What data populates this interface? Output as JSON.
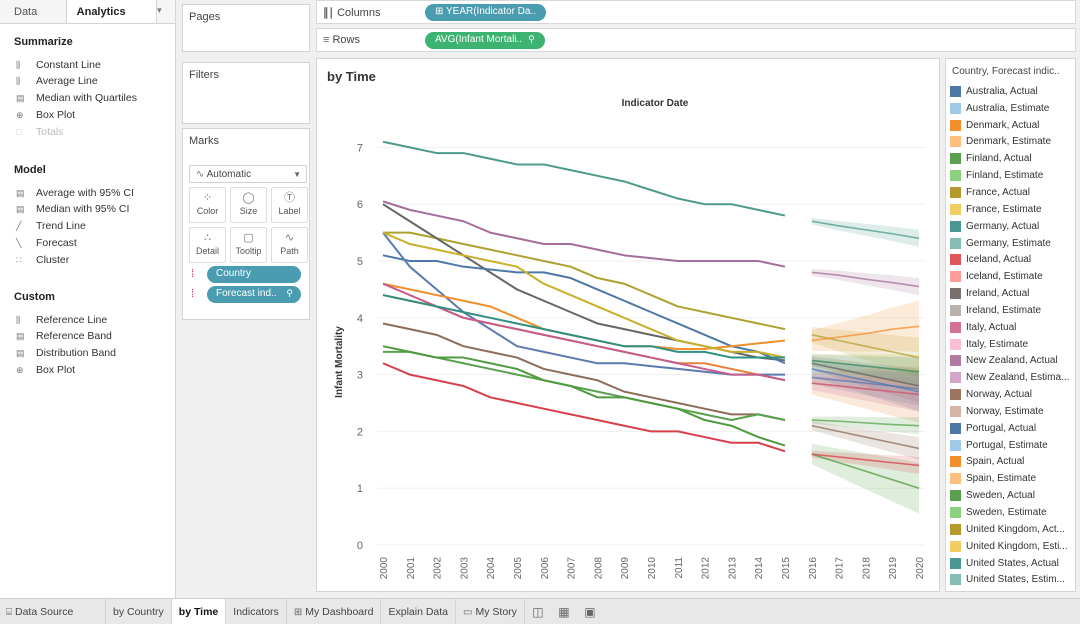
{
  "left_tabs": {
    "data": "Data",
    "analytics": "Analytics"
  },
  "summarize": {
    "heading": "Summarize",
    "items": [
      {
        "label": "Constant Line",
        "icon": "constant-line-icon"
      },
      {
        "label": "Average Line",
        "icon": "average-line-icon"
      },
      {
        "label": "Median with Quartiles",
        "icon": "median-quartiles-icon"
      },
      {
        "label": "Box Plot",
        "icon": "box-plot-icon"
      },
      {
        "label": "Totals",
        "icon": "totals-icon"
      }
    ]
  },
  "model": {
    "heading": "Model",
    "items": [
      {
        "label": "Average with 95% CI",
        "icon": "average-ci-icon"
      },
      {
        "label": "Median with 95% CI",
        "icon": "median-ci-icon"
      },
      {
        "label": "Trend Line",
        "icon": "trend-line-icon"
      },
      {
        "label": "Forecast",
        "icon": "forecast-icon"
      },
      {
        "label": "Cluster",
        "icon": "cluster-icon"
      }
    ]
  },
  "custom": {
    "heading": "Custom",
    "items": [
      {
        "label": "Reference Line",
        "icon": "reference-line-icon"
      },
      {
        "label": "Reference Band",
        "icon": "reference-band-icon"
      },
      {
        "label": "Distribution Band",
        "icon": "distribution-band-icon"
      },
      {
        "label": "Box Plot",
        "icon": "box-plot-icon"
      }
    ]
  },
  "cards": {
    "pages": "Pages",
    "filters": "Filters",
    "marks": "Marks",
    "marks_type": "Automatic",
    "mark_buttons": [
      "Color",
      "Size",
      "Label",
      "Detail",
      "Tooltip",
      "Path"
    ],
    "pills": [
      "Country",
      "Forecast ind.."
    ]
  },
  "shelves": {
    "columns_label": "Columns",
    "columns_pill": "YEAR(Indicator Da..",
    "rows_label": "Rows",
    "rows_pill": "AVG(Infant Mortali..",
    "columns_color": "#4a9cb0",
    "rows_color": "#3cb371"
  },
  "view": {
    "title": "by Time"
  },
  "chart_data": {
    "type": "line",
    "title": "Indicator Date",
    "xlabel": "",
    "ylabel": "Infant Mortality",
    "ylim": [
      0,
      7.5
    ],
    "yticks": [
      0,
      1,
      2,
      3,
      4,
      5,
      6,
      7
    ],
    "x": [
      "2000",
      "2001",
      "2002",
      "2003",
      "2004",
      "2005",
      "2006",
      "2007",
      "2008",
      "2009",
      "2010",
      "2011",
      "2012",
      "2013",
      "2014",
      "2015",
      "2016",
      "2017",
      "2018",
      "2019",
      "2020"
    ],
    "actual_years": [
      "2000",
      "2001",
      "2002",
      "2003",
      "2004",
      "2005",
      "2006",
      "2007",
      "2008",
      "2009",
      "2010",
      "2011",
      "2012",
      "2013",
      "2014",
      "2015"
    ],
    "forecast_years": [
      "2016",
      "2017",
      "2018",
      "2019",
      "2020"
    ],
    "series": [
      {
        "name": "Germany",
        "color": "#4e9a8a",
        "actual": [
          7.1,
          7.0,
          6.9,
          6.9,
          6.8,
          6.7,
          6.7,
          6.6,
          6.5,
          6.4,
          6.25,
          6.1,
          6.0,
          6.0,
          5.9,
          5.8
        ],
        "estimate": [
          5.7,
          5.62,
          5.55,
          5.48,
          5.4
        ],
        "band": 0.15
      },
      {
        "name": "New Zealand",
        "color": "#a36f9a",
        "actual": [
          6.05,
          5.9,
          5.8,
          5.7,
          5.5,
          5.4,
          5.3,
          5.3,
          5.2,
          5.1,
          5.05,
          5.0,
          5.0,
          5.0,
          5.0,
          4.9
        ],
        "estimate": [
          4.8,
          4.75,
          4.68,
          4.62,
          4.55
        ],
        "band": 0.15
      },
      {
        "name": "France",
        "color": "#b0a030",
        "actual": [
          5.5,
          5.5,
          5.4,
          5.3,
          5.2,
          5.1,
          5.0,
          4.9,
          4.7,
          4.6,
          4.4,
          4.2,
          4.1,
          4.0,
          3.9,
          3.8
        ],
        "estimate": [
          3.7,
          3.6,
          3.5,
          3.4,
          3.3
        ],
        "band": 0.35
      },
      {
        "name": "Ireland",
        "color": "#666666",
        "actual": [
          6.0,
          5.7,
          5.4,
          5.1,
          4.8,
          4.5,
          4.3,
          4.1,
          3.9,
          3.8,
          3.7,
          3.6,
          3.5,
          3.4,
          3.3,
          3.25
        ],
        "estimate": [
          3.2,
          3.1,
          3.0,
          2.9,
          2.8
        ],
        "band": 0.3
      },
      {
        "name": "Australia",
        "color": "#4e79a7",
        "actual": [
          5.1,
          5.0,
          5.0,
          4.9,
          4.85,
          4.8,
          4.8,
          4.7,
          4.5,
          4.3,
          4.1,
          3.9,
          3.7,
          3.5,
          3.4,
          3.2
        ],
        "estimate": [
          3.1,
          3.0,
          2.9,
          2.8,
          2.7
        ],
        "band": 0.35
      },
      {
        "name": "Portugal",
        "color": "#5a7ab0",
        "actual": [
          5.5,
          4.9,
          4.5,
          4.1,
          3.8,
          3.5,
          3.4,
          3.3,
          3.2,
          3.2,
          3.15,
          3.1,
          3.05,
          3.0,
          3.0,
          3.0
        ],
        "estimate": [
          2.95,
          2.9,
          2.85,
          2.8,
          2.75
        ],
        "band": 0.3
      },
      {
        "name": "Denmark",
        "color": "#f28e2b",
        "actual": [
          4.6,
          4.5,
          4.4,
          4.3,
          4.2,
          4.0,
          3.8,
          3.7,
          3.6,
          3.5,
          3.5,
          3.45,
          3.45,
          3.5,
          3.55,
          3.6
        ],
        "estimate": [
          3.6,
          3.66,
          3.72,
          3.8,
          3.85
        ],
        "band": 0.45
      },
      {
        "name": "Spain",
        "color": "#e5813a",
        "actual": [
          4.4,
          4.3,
          4.2,
          4.0,
          3.9,
          3.8,
          3.7,
          3.6,
          3.5,
          3.4,
          3.3,
          3.2,
          3.2,
          3.1,
          3.0,
          2.9
        ],
        "estimate": [
          2.85,
          2.8,
          2.75,
          2.7,
          2.65
        ],
        "band": 0.5
      },
      {
        "name": "Italy",
        "color": "#c45c8d",
        "actual": [
          4.6,
          4.4,
          4.2,
          4.0,
          3.9,
          3.8,
          3.7,
          3.6,
          3.5,
          3.4,
          3.3,
          3.2,
          3.1,
          3.0,
          3.0,
          2.9
        ],
        "estimate": [
          2.85,
          2.8,
          2.75,
          2.7,
          2.65
        ],
        "band": 0.3
      },
      {
        "name": "United Kingdom",
        "color": "#c8b02c",
        "actual": [
          5.5,
          5.3,
          5.2,
          5.1,
          5.0,
          4.9,
          4.6,
          4.4,
          4.2,
          4.0,
          3.8,
          3.6,
          3.5,
          3.4,
          3.4,
          3.3
        ],
        "estimate": [
          3.25,
          3.2,
          3.15,
          3.1,
          3.05
        ],
        "band": 0.3
      },
      {
        "name": "United States",
        "color": "#2f8f80",
        "actual": [
          4.4,
          4.3,
          4.2,
          4.1,
          4.0,
          3.9,
          3.8,
          3.7,
          3.6,
          3.5,
          3.5,
          3.4,
          3.4,
          3.3,
          3.3,
          3.3
        ],
        "estimate": [
          3.25,
          3.2,
          3.15,
          3.1,
          3.05
        ],
        "band": 0.25
      },
      {
        "name": "Norway",
        "color": "#8c6d5a",
        "actual": [
          3.9,
          3.8,
          3.7,
          3.5,
          3.4,
          3.3,
          3.1,
          3.0,
          2.9,
          2.7,
          2.6,
          2.5,
          2.4,
          2.3,
          2.3,
          2.2
        ],
        "estimate": [
          2.1,
          2.0,
          1.9,
          1.8,
          1.7
        ],
        "band": 0.2
      },
      {
        "name": "Finland",
        "color": "#59a14f",
        "actual": [
          3.4,
          3.4,
          3.3,
          3.2,
          3.1,
          3.0,
          2.9,
          2.8,
          2.7,
          2.6,
          2.5,
          2.4,
          2.3,
          2.2,
          2.3,
          2.2
        ],
        "estimate": [
          2.2,
          2.18,
          2.15,
          2.12,
          2.1
        ],
        "band": 0.15
      },
      {
        "name": "Sweden",
        "color": "#4f9a3f",
        "actual": [
          3.5,
          3.4,
          3.3,
          3.3,
          3.2,
          3.1,
          2.9,
          2.8,
          2.6,
          2.6,
          2.5,
          2.4,
          2.2,
          2.1,
          1.9,
          1.75
        ],
        "estimate": [
          1.6,
          1.45,
          1.3,
          1.15,
          1.0
        ],
        "band": 0.45
      },
      {
        "name": "Iceland",
        "color": "#d6404b",
        "actual": [
          3.2,
          3.0,
          2.9,
          2.8,
          2.6,
          2.5,
          2.4,
          2.3,
          2.2,
          2.1,
          2.0,
          2.0,
          1.9,
          1.8,
          1.8,
          1.65
        ],
        "estimate": [
          1.6,
          1.55,
          1.5,
          1.45,
          1.4
        ],
        "band": 0.15
      }
    ]
  },
  "legend": {
    "title": "Country, Forecast indic..",
    "items": [
      {
        "label": "Australia, Actual",
        "color": "#4e79a7"
      },
      {
        "label": "Australia, Estimate",
        "color": "#a0cbe8"
      },
      {
        "label": "Denmark, Actual",
        "color": "#f28e2b"
      },
      {
        "label": "Denmark, Estimate",
        "color": "#ffbe7d"
      },
      {
        "label": "Finland, Actual",
        "color": "#59a14f"
      },
      {
        "label": "Finland, Estimate",
        "color": "#8cd17d"
      },
      {
        "label": "France, Actual",
        "color": "#b6992d"
      },
      {
        "label": "France, Estimate",
        "color": "#f1ce63"
      },
      {
        "label": "Germany, Actual",
        "color": "#499894"
      },
      {
        "label": "Germany, Estimate",
        "color": "#86bcb6"
      },
      {
        "label": "Iceland, Actual",
        "color": "#e15759"
      },
      {
        "label": "Iceland, Estimate",
        "color": "#ff9d9a"
      },
      {
        "label": "Ireland, Actual",
        "color": "#79706e"
      },
      {
        "label": "Ireland, Estimate",
        "color": "#bab0ac"
      },
      {
        "label": "Italy, Actual",
        "color": "#d37295"
      },
      {
        "label": "Italy, Estimate",
        "color": "#fabfd2"
      },
      {
        "label": "New Zealand, Actual",
        "color": "#b07aa1"
      },
      {
        "label": "New Zealand, Estima...",
        "color": "#d4a6c8"
      },
      {
        "label": "Norway, Actual",
        "color": "#9d7660"
      },
      {
        "label": "Norway, Estimate",
        "color": "#d7b5a6"
      },
      {
        "label": "Portugal, Actual",
        "color": "#4e79a7"
      },
      {
        "label": "Portugal, Estimate",
        "color": "#a0cbe8"
      },
      {
        "label": "Spain, Actual",
        "color": "#f28e2b"
      },
      {
        "label": "Spain, Estimate",
        "color": "#ffbe7d"
      },
      {
        "label": "Sweden, Actual",
        "color": "#59a14f"
      },
      {
        "label": "Sweden, Estimate",
        "color": "#8cd17d"
      },
      {
        "label": "United Kingdom, Act...",
        "color": "#b6992d"
      },
      {
        "label": "United Kingdom, Esti...",
        "color": "#f1ce63"
      },
      {
        "label": "United States, Actual",
        "color": "#499894"
      },
      {
        "label": "United States, Estim...",
        "color": "#86bcb6"
      }
    ]
  },
  "bottom_tabs": [
    {
      "label": "Data Source",
      "icon": "database-icon",
      "active": false
    },
    {
      "label": "by Country",
      "icon": "",
      "active": false
    },
    {
      "label": "by Time",
      "icon": "",
      "active": true
    },
    {
      "label": "Indicators",
      "icon": "",
      "active": false
    },
    {
      "label": "My Dashboard",
      "icon": "dashboard-icon",
      "active": false
    },
    {
      "label": "Explain Data",
      "icon": "",
      "active": false
    },
    {
      "label": "My Story",
      "icon": "story-icon",
      "active": false
    }
  ]
}
